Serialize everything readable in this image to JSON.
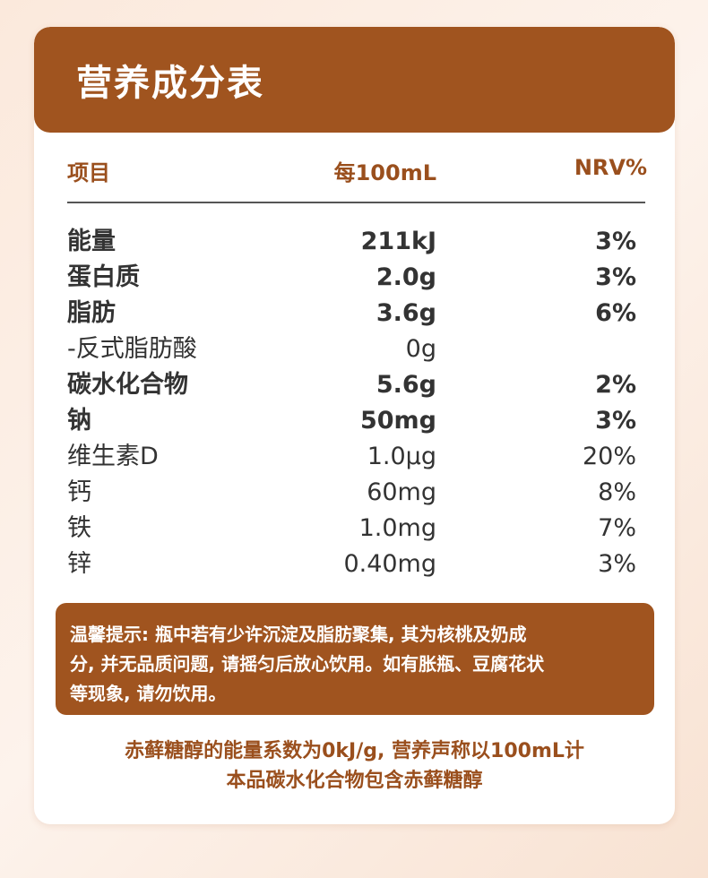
{
  "header": {
    "title": "营养成分表"
  },
  "table": {
    "columns": [
      "项目",
      "每100mL",
      "NRV%"
    ],
    "rows": [
      {
        "name": "能量",
        "amount": "211kJ",
        "nrv": "3%",
        "bold": true
      },
      {
        "name": "蛋白质",
        "amount": "2.0g",
        "nrv": "3%",
        "bold": true
      },
      {
        "name": "脂肪",
        "amount": "3.6g",
        "nrv": "6%",
        "bold": true
      },
      {
        "name": "-反式脂肪酸",
        "amount": "0g",
        "bold": false
      },
      {
        "name": "碳水化合物",
        "amount": "5.6g",
        "nrv": "2%",
        "bold": true
      },
      {
        "name": "钠",
        "amount": "50mg",
        "nrv": "3%",
        "bold": true
      },
      {
        "name": "维生素D",
        "amount": "1.0μg",
        "nrv": "20%",
        "bold": false
      },
      {
        "name": "钙",
        "amount": "60mg",
        "nrv": "8%",
        "bold": false
      },
      {
        "name": "铁",
        "amount": "1.0mg",
        "nrv": "7%",
        "bold": false
      },
      {
        "name": "锌",
        "amount": "0.40mg",
        "nrv": "3%",
        "bold": false
      }
    ]
  },
  "notice": {
    "lines": [
      "温馨提示: 瓶中若有少许沉淀及脂肪聚集, 其为核桃及奶成",
      "分, 并无品质问题, 请摇匀后放心饮用。如有胀瓶、豆腐花状",
      "等现象, 请勿饮用。"
    ]
  },
  "footnote": {
    "lines": [
      "赤藓糖醇的能量系数为0kJ/g, 营养声称以100mL计",
      "本品碳水化合物包含赤藓糖醇"
    ]
  }
}
